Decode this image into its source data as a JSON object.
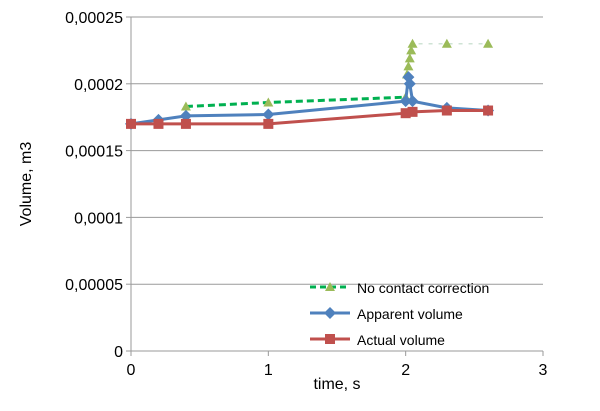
{
  "chart_data": {
    "type": "line",
    "xlabel": "time, s",
    "ylabel": "Volume, m3",
    "xlim": [
      0,
      3
    ],
    "ylim": [
      0,
      0.00025
    ],
    "xticks": [
      "0",
      "1",
      "2",
      "3"
    ],
    "yticks": [
      "0",
      "0,00005",
      "0,0001",
      "0,00015",
      "0,0002",
      "0,00025"
    ],
    "grid": "horizontal",
    "legend": "bottom-right",
    "series": [
      {
        "name": "No contact correction",
        "color": "#9BBB59",
        "line_color": "#00B050",
        "marker": "triangle",
        "dashed": true,
        "x": [
          0.4,
          1,
          2,
          2.01,
          2.02,
          2.03,
          2.04,
          2.05,
          2.3,
          2.6
        ],
        "y": [
          0.000183,
          0.000186,
          0.00019,
          0.000207,
          0.000213,
          0.000219,
          0.000225,
          0.00023,
          0.00023,
          0.00023
        ]
      },
      {
        "name": "Apparent volume",
        "color": "#4F81BD",
        "marker": "diamond",
        "x": [
          0,
          0.2,
          0.4,
          1,
          2,
          2.02,
          2.03,
          2.05,
          2.3,
          2.6
        ],
        "y": [
          0.00017,
          0.000173,
          0.000176,
          0.000177,
          0.000187,
          0.000205,
          0.0002,
          0.000187,
          0.000182,
          0.00018
        ]
      },
      {
        "name": "Actual volume",
        "color": "#C0504D",
        "marker": "square",
        "x": [
          0,
          0.2,
          0.4,
          1,
          2,
          2.05,
          2.3,
          2.6
        ],
        "y": [
          0.00017,
          0.00017,
          0.00017,
          0.00017,
          0.000178,
          0.000179,
          0.00018,
          0.00018
        ]
      }
    ]
  }
}
